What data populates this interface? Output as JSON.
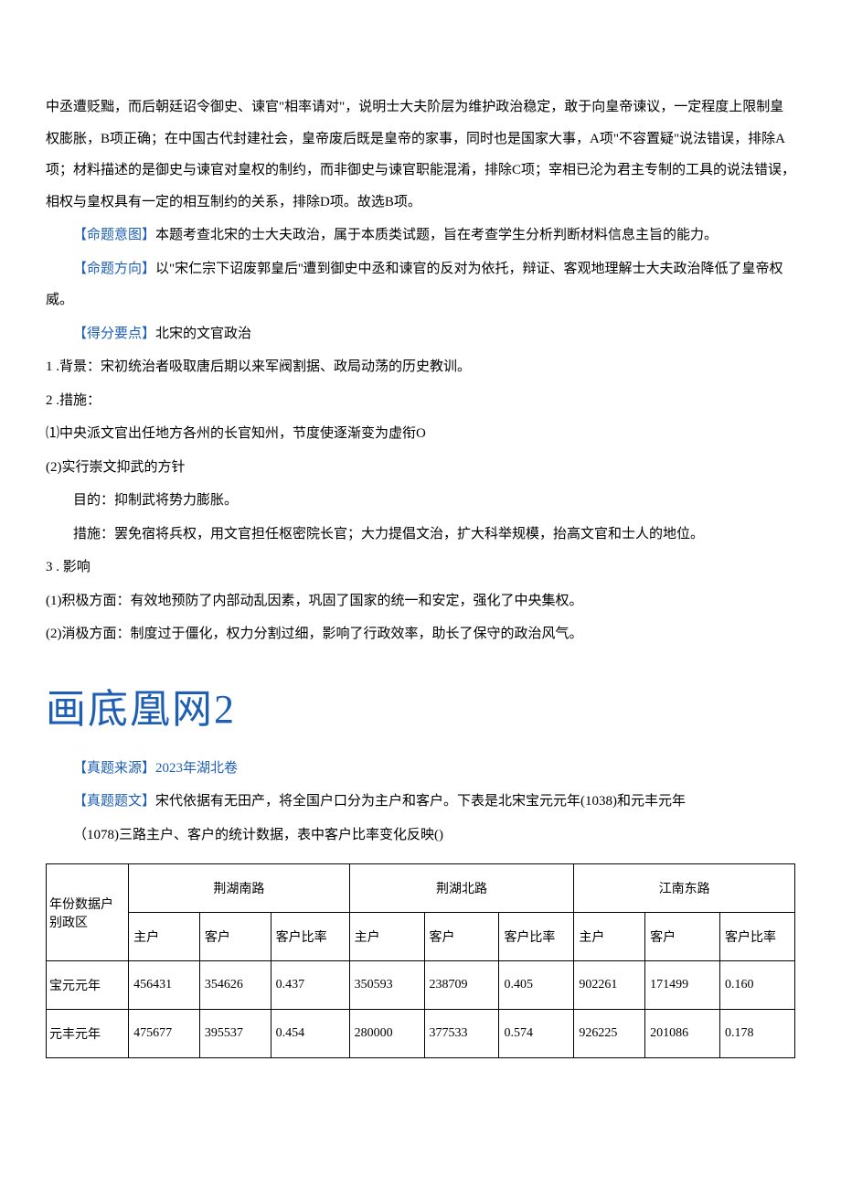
{
  "colors": {
    "text": "#000000",
    "accent": "#1e5fb3",
    "background": "#ffffff",
    "table_border": "#000000"
  },
  "typography": {
    "body_fontsize": 15,
    "body_lineheight": 2.3,
    "title_fontsize": 44,
    "table_fontsize": 14
  },
  "p1": "中丞遭贬黜，而后朝廷诏令御史、谏官\"相率请对\"，说明士大夫阶层为维护政治稳定，敢于向皇帝谏议，一定程度上限制皇权膨胀，B项正确；在中国古代封建社会，皇帝废后既是皇帝的家事，同时也是国家大事，A项\"不容置疑\"说法错误，排除A项；材料描述的是御史与谏官对皇权的制约，而非御史与谏官职能混淆，排除C项；宰相已沦为君主专制的工具的说法错误，相权与皇权具有一定的相互制约的关系，排除D项。故选B项。",
  "p2_label": "【命题意图】",
  "p2": "本题考查北宋的士大夫政治，属于本质类试题，旨在考查学生分析判断材料信息主旨的能力。",
  "p3_label": "【命题方向】",
  "p3": "以\"宋仁宗下诏废郭皇后''遭到御史中丞和谏官的反对为依托，辩证、客观地理解士大夫政治降低了皇帝权威。",
  "p4_label": "【得分要点】",
  "p4": "北宋的文官政治",
  "l1": "1 .背景：宋初统治者吸取唐后期以来军阀割据、政局动荡的历史教训。",
  "l2": "2  .措施：",
  "m1": "⑴中央派文官出任地方各州的长官知州，节度使逐渐变为虚衔O",
  "m2": "(2)实行崇文抑武的方针",
  "m2a": "目的：抑制武将势力膨胀。",
  "m2b": "措施：罢免宿将兵权，用文官担任枢密院长官；大力提倡文治，扩大科举规模，抬高文官和士人的地位。",
  "l3": "3  . 影响",
  "e1": "(1)积极方面：有效地预防了内部动乱因素，巩固了国家的统一和安定，强化了中央集权。",
  "e2": "(2)消极方面：制度过于僵化，权力分割过细，影响了行政效率，助长了保守的政治风气。",
  "big_title": "画底凰网2",
  "src_label": "【真题来源】",
  "src_text": "2023年湖北卷",
  "q_label": "【真题题文】",
  "q_text": "宋代依据有无田产，将全国户口分为主户和客户。下表是北宋宝元元年(1038)和元丰元年",
  "q_text2": "（1078)三路主户、客户的统计数据，表中客户比率变化反映()",
  "table": {
    "corner": "年份数据户别政区",
    "groups": [
      "荆湖南路",
      "荆湖北路",
      "江南东路"
    ],
    "sub_cols": [
      "主户",
      "客户",
      "客户比率"
    ],
    "rows": [
      {
        "label": "宝元元年",
        "cells": [
          "456431",
          "354626",
          "0.437",
          "350593",
          "238709",
          "0.405",
          "902261",
          "171499",
          "0.160"
        ]
      },
      {
        "label": "元丰元年",
        "cells": [
          "475677",
          "395537",
          "0.454",
          "280000",
          "377533",
          "0.574",
          "926225",
          "201086",
          "0.178"
        ]
      }
    ],
    "col_widths": [
      "11%",
      "9.5%",
      "9.5%",
      "10.5%",
      "10%",
      "10%",
      "10%",
      "9.5%",
      "10%",
      "10%"
    ]
  }
}
